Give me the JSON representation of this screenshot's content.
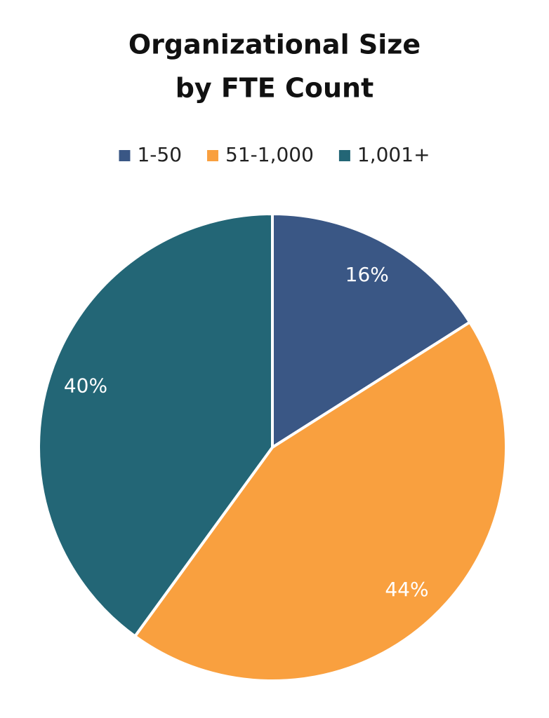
{
  "chart_data": {
    "type": "pie",
    "title": [
      "Organizational Size",
      "by FTE Count"
    ],
    "categories": [
      "1-50",
      "51-1,000",
      "1,001+"
    ],
    "values": [
      16,
      44,
      40
    ],
    "value_labels": [
      "16%",
      "44%",
      "40%"
    ],
    "colors": [
      "#3a5785",
      "#f9a03f",
      "#236676"
    ]
  }
}
